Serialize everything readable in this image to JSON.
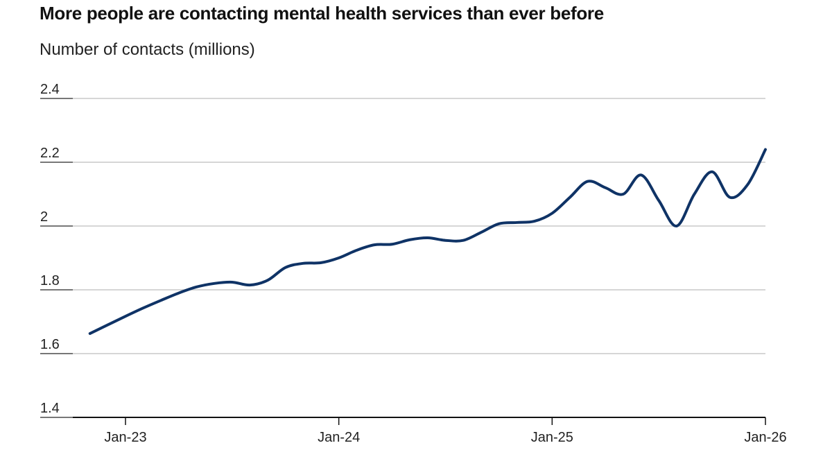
{
  "chart_data": {
    "type": "line",
    "title": "More people are contacting mental health services than ever before",
    "subtitle": "Number of contacts (millions)",
    "xlabel": "",
    "ylabel": "",
    "ylim": [
      1.4,
      2.4
    ],
    "yticks": [
      "1.4",
      "1.6",
      "1.8",
      "2",
      "2.2",
      "2.4"
    ],
    "xticks": [
      "Jan-23",
      "Jan-24",
      "Jan-25",
      "Jan-26"
    ],
    "grid": true,
    "line_color": "#0f3366",
    "x": [
      "2022-11",
      "2022-12",
      "2023-01",
      "2023-02",
      "2023-03",
      "2023-04",
      "2023-05",
      "2023-06",
      "2023-07",
      "2023-08",
      "2023-09",
      "2023-10",
      "2023-11",
      "2023-12",
      "2024-01",
      "2024-02",
      "2024-03",
      "2024-04",
      "2024-05",
      "2024-06",
      "2024-07",
      "2024-08",
      "2024-09",
      "2024-10",
      "2024-11",
      "2024-12",
      "2025-01",
      "2025-02",
      "2025-03",
      "2025-04",
      "2025-05",
      "2025-06",
      "2025-07",
      "2025-08",
      "2025-09",
      "2025-10",
      "2025-11",
      "2025-12",
      "2026-01"
    ],
    "values": [
      1.663,
      1.69,
      1.717,
      1.743,
      1.767,
      1.79,
      1.809,
      1.82,
      1.824,
      1.815,
      1.83,
      1.87,
      1.883,
      1.885,
      1.9,
      1.924,
      1.941,
      1.943,
      1.957,
      1.963,
      1.955,
      1.955,
      1.98,
      2.007,
      2.011,
      2.015,
      2.04,
      2.09,
      2.14,
      2.12,
      2.1,
      2.16,
      2.08,
      2.0,
      2.1,
      2.17,
      2.09,
      2.13,
      2.24
    ]
  }
}
